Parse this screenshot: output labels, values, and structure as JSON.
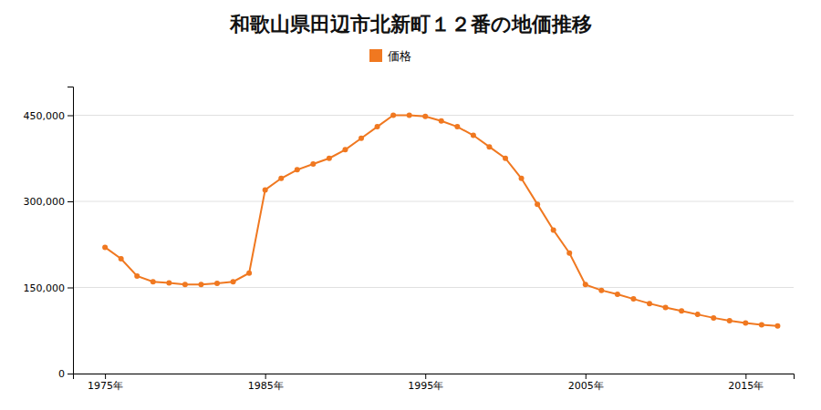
{
  "chart_data": {
    "type": "line",
    "title": "和歌山県田辺市北新町１２番の地価推移",
    "x": [
      1975,
      1976,
      1977,
      1978,
      1979,
      1980,
      1981,
      1982,
      1983,
      1984,
      1985,
      1986,
      1987,
      1988,
      1989,
      1990,
      1991,
      1992,
      1993,
      1994,
      1995,
      1996,
      1997,
      1998,
      1999,
      2000,
      2001,
      2002,
      2003,
      2004,
      2005,
      2006,
      2007,
      2008,
      2009,
      2010,
      2011,
      2012,
      2013,
      2014,
      2015,
      2016,
      2017
    ],
    "series": [
      {
        "name": "価格",
        "color": "#f07820",
        "values": [
          220000,
          200000,
          170000,
          160000,
          158000,
          155000,
          155000,
          157000,
          160000,
          175000,
          320000,
          340000,
          355000,
          365000,
          375000,
          390000,
          410000,
          430000,
          450000,
          450000,
          448000,
          440000,
          430000,
          415000,
          395000,
          375000,
          340000,
          295000,
          250000,
          210000,
          155000,
          145000,
          138000,
          130000,
          122000,
          115000,
          109000,
          103000,
          97000,
          92000,
          88000,
          85000,
          83000
        ]
      }
    ],
    "xlim": [
      1973,
      2018
    ],
    "xticks": [
      {
        "value": 1975,
        "label": "1975年"
      },
      {
        "value": 1985,
        "label": "1985年"
      },
      {
        "value": 1995,
        "label": "1995年"
      },
      {
        "value": 2005,
        "label": "2005年"
      },
      {
        "value": 2015,
        "label": "2015年"
      }
    ],
    "ylim": [
      0,
      500000
    ],
    "yticks": [
      0,
      {
        "value": 150000,
        "label": "150,000"
      },
      {
        "value": 300000,
        "label": "300,000"
      },
      {
        "value": 450000,
        "label": "450,000"
      }
    ],
    "grid": true,
    "legend": "top",
    "marker": "circle"
  }
}
